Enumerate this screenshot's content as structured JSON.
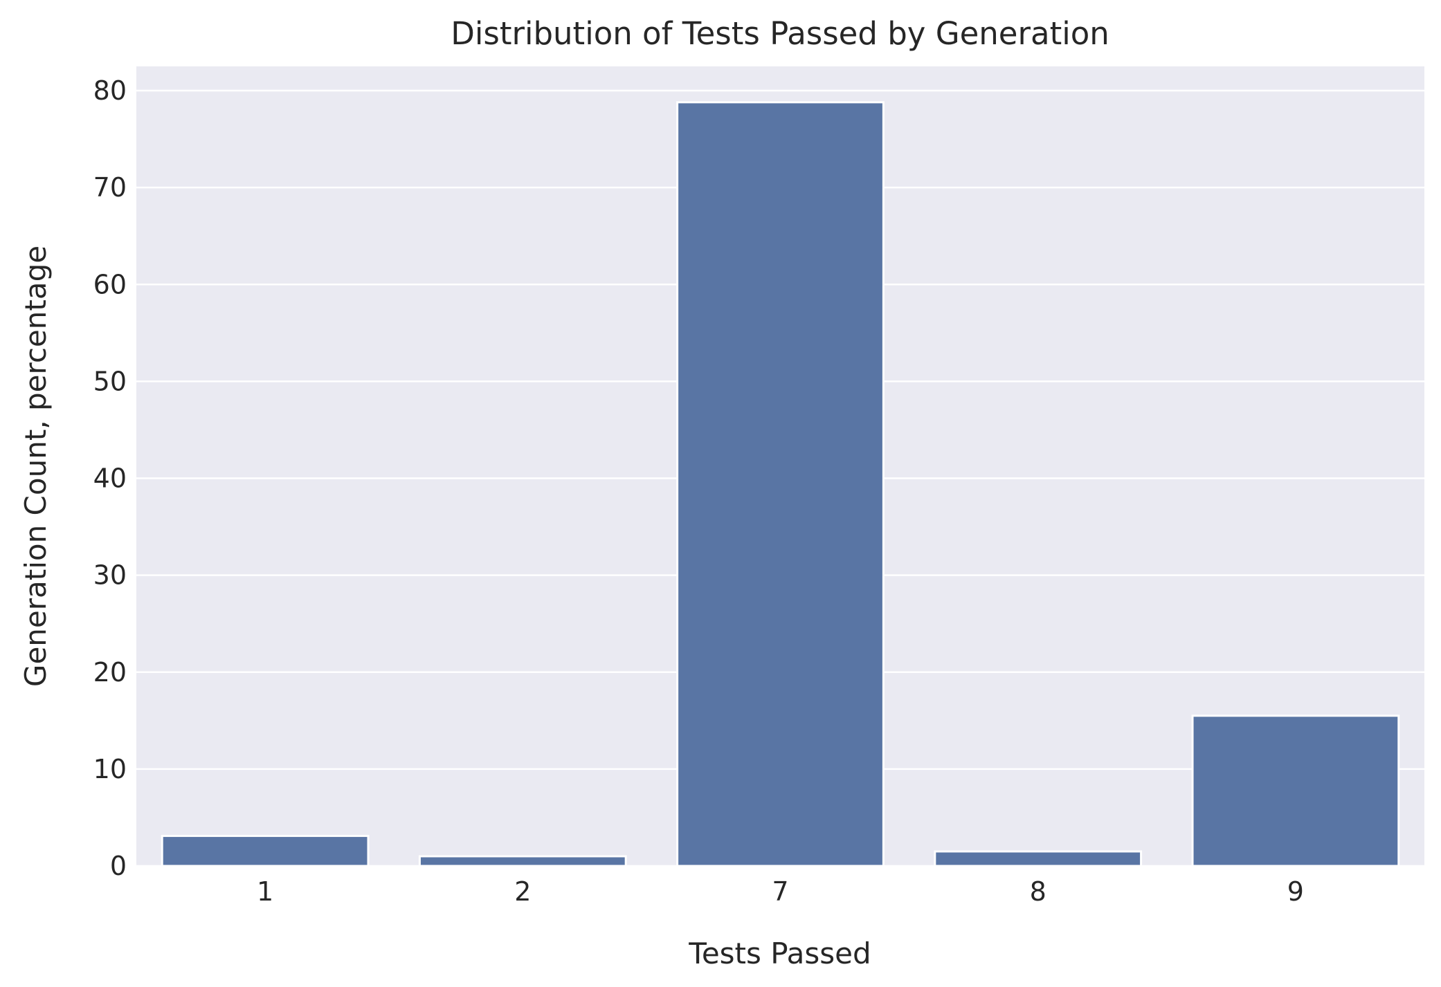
{
  "chart_data": {
    "type": "bar",
    "title": "Distribution of Tests Passed by Generation",
    "xlabel": "Tests Passed",
    "ylabel": "Generation Count, percentage",
    "categories": [
      "1",
      "2",
      "7",
      "8",
      "9"
    ],
    "values": [
      3.1,
      1.0,
      78.8,
      1.5,
      15.5
    ],
    "ylim": [
      0,
      82.5
    ],
    "yticks": [
      0,
      10,
      20,
      30,
      40,
      50,
      60,
      70,
      80
    ],
    "grid": true,
    "legend": "none",
    "colors": {
      "bar": "#5975a4",
      "plot_background": "#eaeaf2",
      "grid": "#ffffff",
      "text": "#262626"
    }
  }
}
